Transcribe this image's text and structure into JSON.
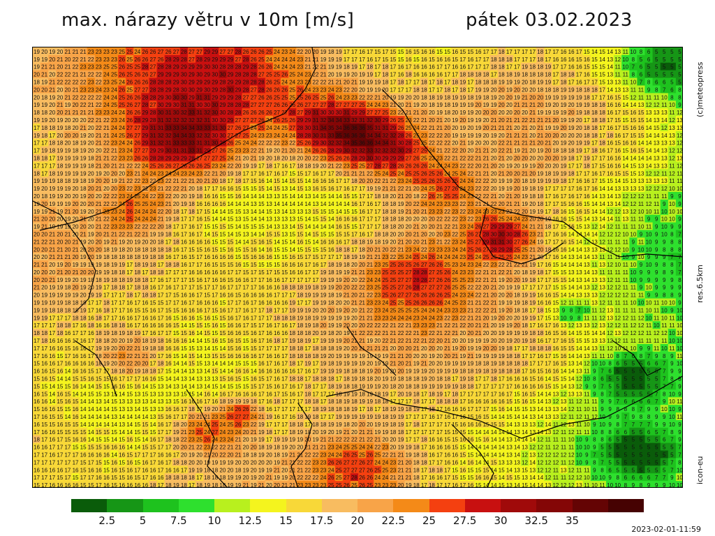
{
  "title": "max. nárazy větru v 10m [m/s]",
  "date": "pátek 03.02.2023",
  "side_labels": {
    "copyright": "(c)meteopress",
    "resolution": "res.6.5km",
    "model": "icon-eu"
  },
  "timestamp": "2023-02-01-11:59",
  "legend": {
    "colors": [
      "#0a5c0a",
      "#169616",
      "#1ec21e",
      "#2ee02e",
      "#b8f01e",
      "#f4f41e",
      "#f8d838",
      "#f8bc60",
      "#f8a448",
      "#f48a18",
      "#f44010",
      "#c81010",
      "#a00a0a",
      "#840606",
      "#640404",
      "#460202"
    ],
    "ticks": [
      "2.5",
      "5",
      "7.5",
      "10",
      "12.5",
      "15",
      "17.5",
      "20",
      "22.5",
      "25",
      "27.5",
      "30",
      "32.5",
      "35"
    ]
  },
  "map": {
    "grid_rows": 58,
    "grid_cols": 84,
    "value_range": [
      5,
      36
    ],
    "description_note": "gust speed field in m/s"
  }
}
